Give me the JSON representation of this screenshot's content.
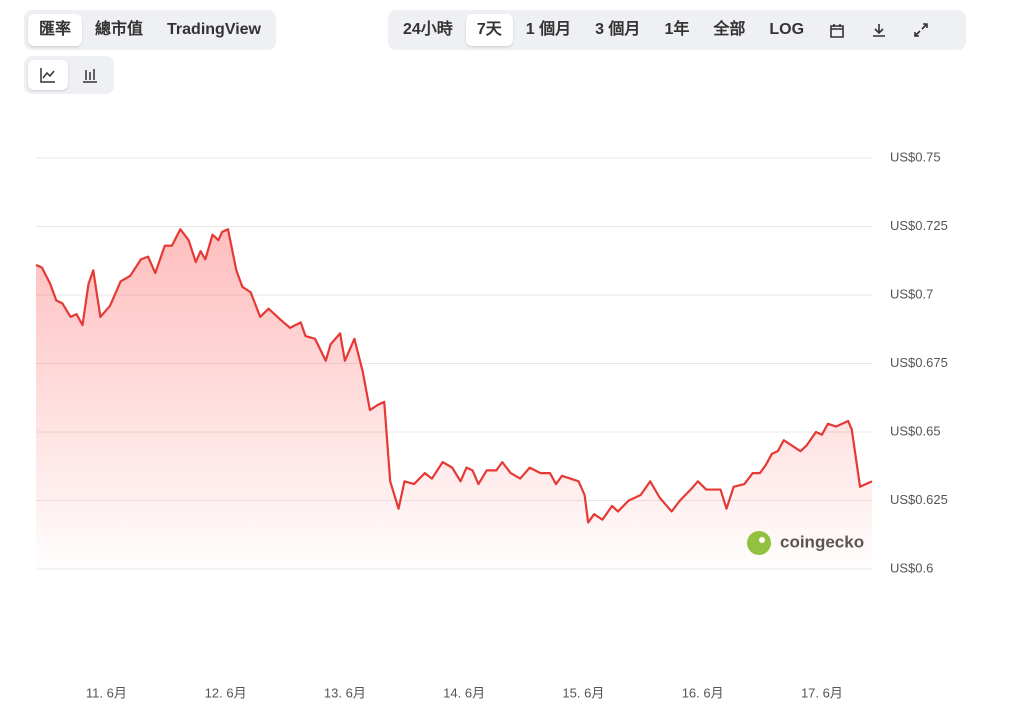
{
  "toolbar": {
    "views": [
      "匯率",
      "總市值",
      "TradingView"
    ],
    "ranges": [
      "24小時",
      "7天",
      "1 個月",
      "3 個月",
      "1年",
      "全部",
      "LOG"
    ]
  },
  "watermark": "coingecko",
  "chart_data": {
    "type": "line",
    "color": "#e53935",
    "grid": true,
    "x": [
      10.41,
      10.46,
      10.53,
      10.58,
      10.63,
      10.7,
      10.75,
      10.8,
      10.85,
      10.89,
      10.95,
      11.03,
      11.12,
      11.2,
      11.29,
      11.35,
      11.41,
      11.49,
      11.55,
      11.62,
      11.69,
      11.75,
      11.79,
      11.83,
      11.89,
      11.94,
      11.97,
      12.02,
      12.09,
      12.14,
      12.21,
      12.29,
      12.36,
      12.46,
      12.54,
      12.63,
      12.67,
      12.75,
      12.84,
      12.88,
      12.96,
      13.0,
      13.08,
      13.15,
      13.21,
      13.28,
      13.33,
      13.38,
      13.45,
      13.5,
      13.58,
      13.67,
      13.73,
      13.82,
      13.9,
      13.97,
      14.02,
      14.07,
      14.12,
      14.19,
      14.27,
      14.32,
      14.39,
      14.47,
      14.55,
      14.64,
      14.72,
      14.77,
      14.82,
      14.89,
      14.96,
      15.01,
      15.04,
      15.09,
      15.16,
      15.24,
      15.29,
      15.38,
      15.48,
      15.56,
      15.64,
      15.74,
      15.81,
      15.9,
      15.96,
      16.03,
      16.15,
      16.2,
      16.26,
      16.35,
      16.42,
      16.48,
      16.53,
      16.58,
      16.63,
      16.68,
      16.75,
      16.82,
      16.87,
      16.95,
      17.0,
      17.05,
      17.12,
      17.22,
      17.25,
      17.32,
      17.37,
      17.42
    ],
    "series": [
      {
        "values": [
          0.711,
          0.71,
          0.704,
          0.698,
          0.697,
          0.692,
          0.693,
          0.689,
          0.704,
          0.709,
          0.692,
          0.696,
          0.705,
          0.707,
          0.713,
          0.714,
          0.708,
          0.718,
          0.718,
          0.724,
          0.72,
          0.712,
          0.716,
          0.713,
          0.722,
          0.72,
          0.723,
          0.724,
          0.709,
          0.703,
          0.701,
          0.692,
          0.695,
          0.691,
          0.688,
          0.69,
          0.685,
          0.684,
          0.676,
          0.682,
          0.686,
          0.676,
          0.684,
          0.672,
          0.658,
          0.66,
          0.661,
          0.632,
          0.622,
          0.632,
          0.631,
          0.635,
          0.633,
          0.639,
          0.637,
          0.632,
          0.637,
          0.636,
          0.631,
          0.636,
          0.636,
          0.639,
          0.635,
          0.633,
          0.637,
          0.635,
          0.635,
          0.631,
          0.634,
          0.633,
          0.632,
          0.627,
          0.617,
          0.62,
          0.618,
          0.623,
          0.621,
          0.625,
          0.627,
          0.632,
          0.626,
          0.621,
          0.625,
          0.629,
          0.632,
          0.629,
          0.629,
          0.622,
          0.63,
          0.631,
          0.635,
          0.635,
          0.638,
          0.642,
          0.643,
          0.647,
          0.645,
          0.643,
          0.645,
          0.65,
          0.649,
          0.653,
          0.652,
          0.654,
          0.651,
          0.63,
          0.631,
          0.632
        ]
      }
    ],
    "xlim": [
      10.41,
      17.42
    ],
    "xticks": [
      {
        "value": 11,
        "label": "11. 6月"
      },
      {
        "value": 12,
        "label": "12. 6月"
      },
      {
        "value": 13,
        "label": "13. 6月"
      },
      {
        "value": 14,
        "label": "14. 6月"
      },
      {
        "value": 15,
        "label": "15. 6月"
      },
      {
        "value": 16,
        "label": "16. 6月"
      },
      {
        "value": 17,
        "label": "17. 6月"
      }
    ],
    "ylim": [
      0.6,
      0.75
    ],
    "yticks": [
      {
        "value": 0.6,
        "label": "US$0.6"
      },
      {
        "value": 0.625,
        "label": "US$0.625"
      },
      {
        "value": 0.65,
        "label": "US$0.65"
      },
      {
        "value": 0.675,
        "label": "US$0.675"
      },
      {
        "value": 0.7,
        "label": "US$0.7"
      },
      {
        "value": 0.725,
        "label": "US$0.725"
      },
      {
        "value": 0.75,
        "label": "US$0.75"
      }
    ]
  }
}
